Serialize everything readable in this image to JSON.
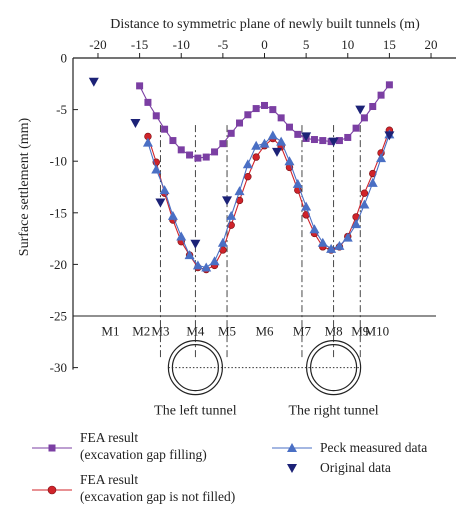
{
  "chart_data": {
    "type": "line",
    "title": "",
    "xlabel": "Distance to symmetric plane of newly built tunnels (m)",
    "ylabel": "Surface settlement (mm)",
    "xlim": [
      -23,
      23
    ],
    "ylim": [
      -30,
      0
    ],
    "xticks": [
      -20,
      -15,
      -10,
      -5,
      0,
      5,
      10,
      15,
      20
    ],
    "xtick_labels": [
      "-20",
      "-15",
      "-10",
      "-5",
      "0",
      "5",
      "10",
      "15",
      "20"
    ],
    "yticks": [
      0,
      -5,
      -10,
      -15,
      -20,
      -25,
      -30
    ],
    "ytick_labels": [
      "0",
      "-5",
      "-10",
      "-15",
      "-20",
      "-25",
      "-30"
    ],
    "x_axis_position": "top",
    "grid": false,
    "legend_position": "bottom",
    "series": [
      {
        "name": "FEA result\n(excavation gap filling)",
        "color": "#7b3fa3",
        "marker": "square",
        "x": [
          -15,
          -14,
          -13,
          -12,
          -11,
          -10,
          -9,
          -8,
          -7,
          -6,
          -5,
          -4,
          -3,
          -2,
          -1,
          0,
          1,
          2,
          3,
          4,
          5,
          6,
          7,
          8,
          9,
          10,
          11,
          12,
          13,
          14,
          15
        ],
        "y": [
          -2.7,
          -4.3,
          -5.6,
          -6.9,
          -8.0,
          -8.9,
          -9.4,
          -9.7,
          -9.6,
          -9.1,
          -8.3,
          -7.3,
          -6.3,
          -5.5,
          -4.9,
          -4.6,
          -5.0,
          -5.8,
          -6.7,
          -7.4,
          -7.8,
          -7.9,
          -8.0,
          -8.1,
          -8.0,
          -7.7,
          -6.8,
          -5.8,
          -4.7,
          -3.6,
          -2.6
        ]
      },
      {
        "name": "FEA result\n(excavation gap is not filled)",
        "color": "#d0232a",
        "marker": "circle",
        "x": [
          -14,
          -13,
          -12,
          -11,
          -10,
          -9,
          -8,
          -7,
          -6,
          -5,
          -4,
          -3,
          -2,
          -1,
          0,
          1,
          2,
          3,
          4,
          5,
          6,
          7,
          8,
          9,
          10,
          11,
          12,
          13,
          14,
          15
        ],
        "y": [
          -7.6,
          -10.1,
          -13.1,
          -15.7,
          -17.8,
          -19.1,
          -20.3,
          -20.5,
          -20.1,
          -18.6,
          -16.2,
          -13.8,
          -11.5,
          -9.6,
          -8.5,
          -7.8,
          -8.6,
          -10.6,
          -12.8,
          -15.2,
          -17.0,
          -18.3,
          -18.6,
          -18.3,
          -17.3,
          -15.4,
          -13.1,
          -11.2,
          -9.2,
          -7.0
        ]
      },
      {
        "name": "Peck measured data",
        "color": "#4a6fc4",
        "marker": "triangle",
        "x": [
          -14,
          -13,
          -12,
          -11,
          -10,
          -9,
          -8,
          -7,
          -6,
          -5,
          -4,
          -3,
          -2,
          -1,
          0,
          1,
          2,
          3,
          4,
          5,
          6,
          7,
          8,
          9,
          10,
          11,
          12,
          13,
          14,
          15
        ],
        "y": [
          -8.2,
          -10.8,
          -12.8,
          -15.3,
          -17.3,
          -19.1,
          -20.1,
          -20.3,
          -19.7,
          -17.9,
          -15.3,
          -12.9,
          -10.3,
          -8.5,
          -8.3,
          -7.5,
          -8.1,
          -10.0,
          -12.2,
          -14.4,
          -16.6,
          -17.9,
          -18.5,
          -18.2,
          -17.4,
          -16.1,
          -14.2,
          -12.1,
          -9.7,
          -7.4
        ]
      },
      {
        "name": "Original data",
        "color": "#1c2277",
        "marker": "triangle-down",
        "x": [
          -20.5,
          -15.5,
          -12.5,
          -8.3,
          -4.5,
          1.5,
          5.0,
          8.3,
          11.5,
          15.0
        ],
        "y": [
          -2.3,
          -6.3,
          -14.0,
          -18.0,
          -13.8,
          -9.1,
          -7.6,
          -8.1,
          -5.0,
          -7.5
        ]
      }
    ],
    "vertical_lines_x": [
      -12.5,
      -8.3,
      -4.5,
      4.5,
      8.3,
      11.5
    ],
    "monitoring_points": {
      "labels": [
        "M1",
        "M2",
        "M3",
        "M4",
        "M5",
        "M6",
        "M7",
        "M8",
        "M9",
        "M10"
      ],
      "x": [
        -18.5,
        -14.8,
        -12.5,
        -8.3,
        -4.5,
        0,
        4.5,
        8.3,
        11.5,
        13.5
      ]
    },
    "tunnels": [
      {
        "label": "The left tunnel",
        "center_x": -8.3,
        "center_y": -30
      },
      {
        "label": "The right tunnel",
        "center_x": 8.3,
        "center_y": -30
      }
    ]
  },
  "legend": {
    "items": [
      {
        "line1": "FEA result",
        "line2": "(excavation gap filling)",
        "color": "#7b3fa3",
        "marker": "square"
      },
      {
        "line1": "FEA result",
        "line2": "(excavation gap is not filled)",
        "color": "#d0232a",
        "marker": "circle"
      },
      {
        "line1": "Peck measured data",
        "line2": "",
        "color": "#4a6fc4",
        "marker": "triangle"
      },
      {
        "line1": "Original data",
        "line2": "",
        "color": "#1c2277",
        "marker": "triangle-down"
      }
    ]
  }
}
